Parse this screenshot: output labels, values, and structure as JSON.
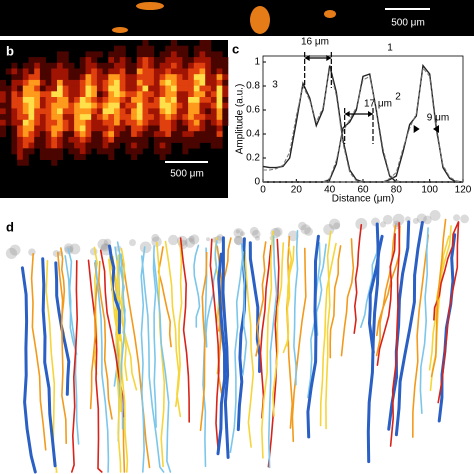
{
  "panel_a": {
    "scale_bar": "500 μm"
  },
  "panel_b": {
    "label": "b",
    "scale_bar": "500 μm"
  },
  "chart_data": {
    "type": "line",
    "panel_label": "c",
    "xlabel": "Distance (μm)",
    "ylabel": "Amplitude (a.u.)",
    "x": [
      0,
      4,
      8,
      12,
      16,
      20,
      24,
      28,
      32,
      36,
      40,
      44,
      48,
      52,
      56,
      60,
      64,
      68,
      72,
      76,
      80,
      84,
      88,
      92,
      96,
      100,
      104,
      108,
      112,
      116,
      120
    ],
    "series": [
      {
        "color": "#222222",
        "dash": false,
        "values": [
          0.13,
          0.12,
          0.12,
          0.13,
          0.2,
          0.5,
          0.82,
          0.7,
          0.47,
          0.6,
          0.97,
          0.75,
          0.35,
          0.1,
          0.02,
          0,
          0,
          0,
          0,
          0,
          0,
          0,
          0,
          0,
          0,
          0,
          0,
          0,
          0,
          0,
          0
        ]
      },
      {
        "color": "#222222",
        "dash": false,
        "values": [
          0,
          0,
          0,
          0,
          0,
          0,
          0,
          0,
          0,
          0,
          0.02,
          0.15,
          0.45,
          0.5,
          0.6,
          0.88,
          0.9,
          0.6,
          0.25,
          0.05,
          0,
          0,
          0,
          0,
          0,
          0,
          0,
          0,
          0,
          0,
          0
        ]
      },
      {
        "color": "#222222",
        "dash": false,
        "values": [
          0,
          0,
          0,
          0,
          0,
          0,
          0,
          0,
          0,
          0,
          0,
          0,
          0,
          0,
          0,
          0,
          0,
          0,
          0,
          0.02,
          0.05,
          0.25,
          0.48,
          0.55,
          0.97,
          0.9,
          0.45,
          0.12,
          0.03,
          0,
          0
        ]
      },
      {
        "color": "#777777",
        "dash": true,
        "values": [
          0.1,
          0.1,
          0.11,
          0.14,
          0.25,
          0.55,
          0.8,
          0.68,
          0.5,
          0.62,
          0.95,
          0.72,
          0.32,
          0.08,
          0.01,
          0,
          0,
          0,
          0,
          0,
          0,
          0,
          0,
          0,
          0,
          0,
          0,
          0,
          0,
          0,
          0
        ]
      },
      {
        "color": "#777777",
        "dash": true,
        "values": [
          0,
          0,
          0,
          0,
          0,
          0,
          0,
          0,
          0,
          0,
          0.03,
          0.18,
          0.42,
          0.52,
          0.62,
          0.85,
          0.88,
          0.62,
          0.28,
          0.06,
          0.01,
          0,
          0,
          0,
          0,
          0,
          0,
          0,
          0,
          0,
          0
        ]
      },
      {
        "color": "#777777",
        "dash": true,
        "values": [
          0,
          0,
          0,
          0,
          0,
          0,
          0,
          0,
          0,
          0,
          0,
          0,
          0,
          0,
          0,
          0,
          0,
          0,
          0,
          0.03,
          0.08,
          0.28,
          0.45,
          0.57,
          0.95,
          0.88,
          0.42,
          0.14,
          0.04,
          0.01,
          0
        ]
      }
    ],
    "xlim": [
      0,
      120
    ],
    "xticks": [
      0,
      20,
      40,
      60,
      80,
      100,
      120
    ],
    "ylim": [
      0,
      1.05
    ],
    "yticks": [
      0,
      0.2,
      0.4,
      0.6,
      0.8,
      1
    ],
    "annotations": [
      "16 μm",
      "17 μm",
      "9 μm",
      "1",
      "2",
      "3"
    ]
  },
  "panel_d": {
    "label": "d"
  }
}
